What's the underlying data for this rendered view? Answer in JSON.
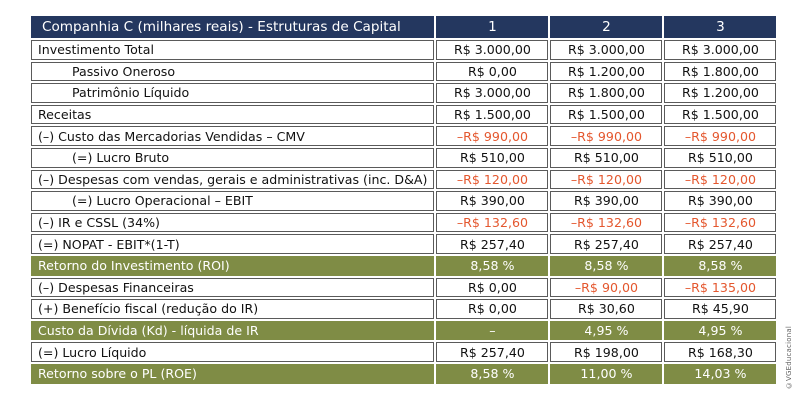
{
  "header": {
    "title": "Companhia C (milhares reais) - Estruturas de Capital",
    "columns": [
      "1",
      "2",
      "3"
    ]
  },
  "rows": [
    {
      "label": "Investimento Total",
      "indent": false,
      "type": "normal",
      "values": [
        "R$ 3.000,00",
        "R$ 3.000,00",
        "R$ 3.000,00"
      ],
      "neg": [
        false,
        false,
        false
      ]
    },
    {
      "label": "Passivo Oneroso",
      "indent": true,
      "type": "normal",
      "values": [
        "R$ 0,00",
        "R$ 1.200,00",
        "R$ 1.800,00"
      ],
      "neg": [
        false,
        false,
        false
      ]
    },
    {
      "label": "Patrimônio Líquido",
      "indent": true,
      "type": "normal",
      "values": [
        "R$ 3.000,00",
        "R$ 1.800,00",
        "R$ 1.200,00"
      ],
      "neg": [
        false,
        false,
        false
      ]
    },
    {
      "label": "Receitas",
      "indent": false,
      "type": "normal",
      "values": [
        "R$ 1.500,00",
        "R$ 1.500,00",
        "R$ 1.500,00"
      ],
      "neg": [
        false,
        false,
        false
      ]
    },
    {
      "label": "(–) Custo das Mercadorias Vendidas – CMV",
      "indent": false,
      "type": "normal",
      "values": [
        "–R$ 990,00",
        "–R$ 990,00",
        "–R$ 990,00"
      ],
      "neg": [
        true,
        true,
        true
      ]
    },
    {
      "label": "(=) Lucro Bruto",
      "indent": true,
      "type": "normal",
      "values": [
        "R$ 510,00",
        "R$ 510,00",
        "R$ 510,00"
      ],
      "neg": [
        false,
        false,
        false
      ]
    },
    {
      "label": "(–) Despesas com vendas, gerais e administrativas (inc. D&A)",
      "indent": false,
      "type": "normal",
      "values": [
        "–R$ 120,00",
        "–R$ 120,00",
        "–R$ 120,00"
      ],
      "neg": [
        true,
        true,
        true
      ]
    },
    {
      "label": "(=) Lucro Operacional – EBIT",
      "indent": true,
      "type": "normal",
      "values": [
        "R$ 390,00",
        "R$ 390,00",
        "R$ 390,00"
      ],
      "neg": [
        false,
        false,
        false
      ]
    },
    {
      "label": "(–) IR e CSSL (34%)",
      "indent": false,
      "type": "normal",
      "values": [
        "–R$ 132,60",
        "–R$ 132,60",
        "–R$ 132,60"
      ],
      "neg": [
        true,
        true,
        true
      ]
    },
    {
      "label": "(=) NOPAT - EBIT*(1-T)",
      "indent": false,
      "type": "normal",
      "values": [
        "R$ 257,40",
        "R$ 257,40",
        "R$ 257,40"
      ],
      "neg": [
        false,
        false,
        false
      ]
    },
    {
      "label": "Retorno do Investimento (ROI)",
      "indent": false,
      "type": "green",
      "values": [
        "8,58 %",
        "8,58 %",
        "8,58 %"
      ],
      "neg": [
        false,
        false,
        false
      ]
    },
    {
      "label": "(–) Despesas Financeiras",
      "indent": false,
      "type": "normal",
      "values": [
        "R$ 0,00",
        "–R$ 90,00",
        "–R$ 135,00"
      ],
      "neg": [
        false,
        true,
        true
      ]
    },
    {
      "label": "(+) Benefício fiscal (redução do IR)",
      "indent": false,
      "type": "normal",
      "values": [
        "R$ 0,00",
        "R$ 30,60",
        "R$ 45,90"
      ],
      "neg": [
        false,
        false,
        false
      ]
    },
    {
      "label": "Custo da Dívida (Kd) - líquida de IR",
      "indent": false,
      "type": "green",
      "values": [
        "–",
        "4,95 %",
        "4,95 %"
      ],
      "neg": [
        false,
        false,
        false
      ]
    },
    {
      "label": "(=) Lucro Líquido",
      "indent": false,
      "type": "normal",
      "values": [
        "R$ 257,40",
        "R$ 198,00",
        "R$ 168,30"
      ],
      "neg": [
        false,
        false,
        false
      ]
    },
    {
      "label": "Retorno sobre o PL (ROE)",
      "indent": false,
      "type": "green",
      "values": [
        "8,58 %",
        "11,00 %",
        "14,03 %"
      ],
      "neg": [
        false,
        false,
        false
      ]
    }
  ],
  "credit": "©VGEducacional",
  "colors": {
    "header_bg": "#24375f",
    "highlight_row": "#7f8c45",
    "negative": "#e4572e"
  }
}
